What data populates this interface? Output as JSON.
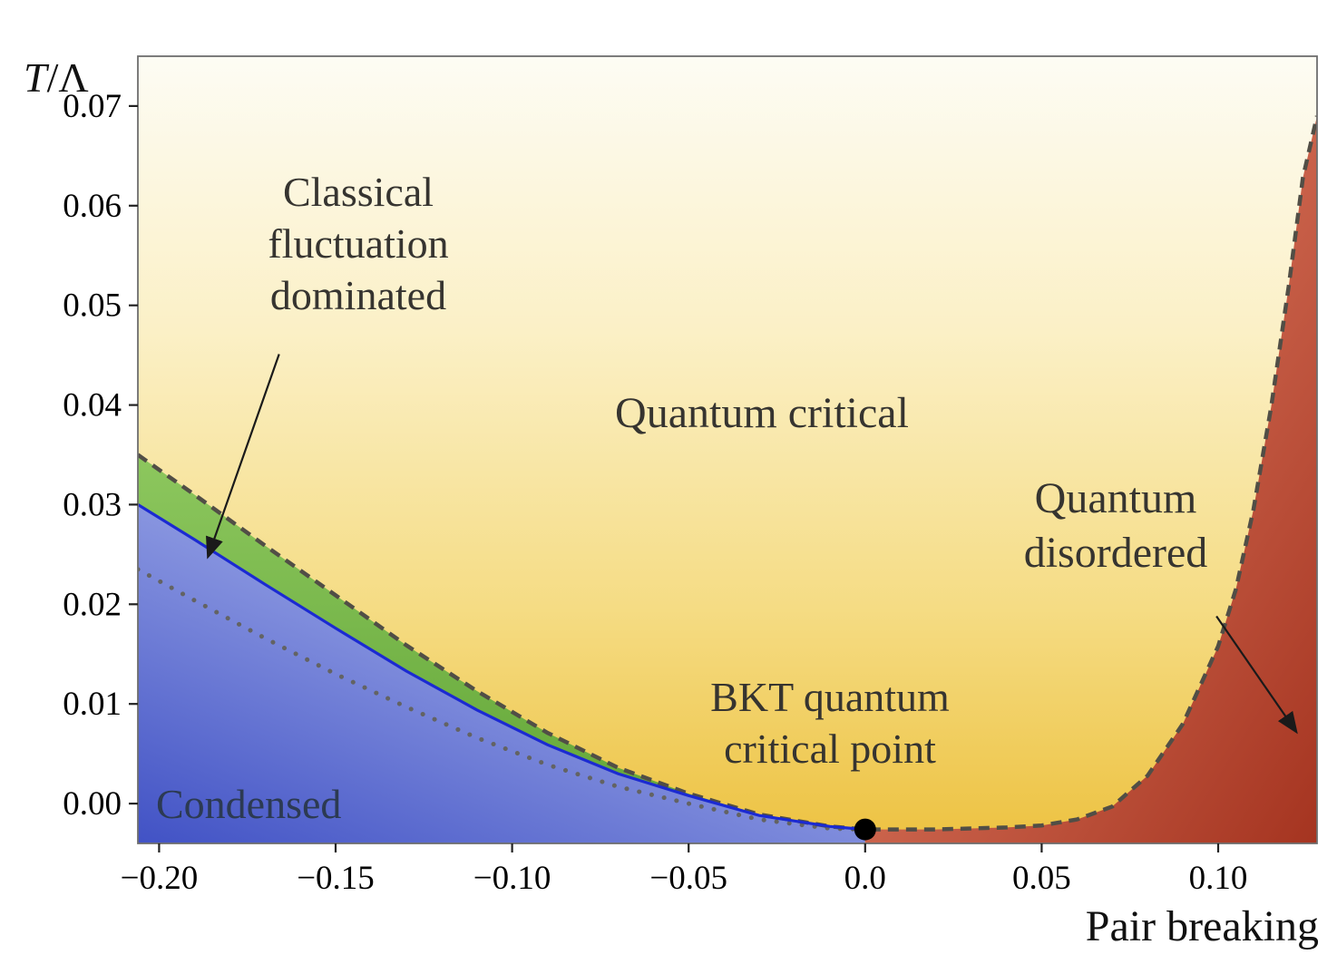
{
  "y_axis_title": {
    "italic": "T",
    "rest": "/Λ"
  },
  "x_axis_title": "Pair breaking",
  "regions": {
    "condensed": "Condensed",
    "quantum_critical": "Quantum critical",
    "classical_fluctuation": "Classical\nfluctuation\ndominated",
    "quantum_disordered": "Quantum\ndisordered",
    "bkt_point": "BKT quantum\ncritical point"
  },
  "colors": {
    "background_gradient": [
      "#fdfcf4",
      "#fbf0c6",
      "#f5dc84",
      "#edc241"
    ],
    "condensed_gradient": [
      "#4152c5",
      "#bcc6f3"
    ],
    "classical_gradient": [
      "#8dc75e",
      "#61a536"
    ],
    "disordered_gradient": [
      "#f09277",
      "#a53420"
    ],
    "blue_line": "#1b2ad2",
    "dashed_line": "#514e46",
    "dotted_line": "#636363",
    "dot": "#000000",
    "frame": "#6e6e6e",
    "tick": "#222222",
    "arrow": "#1a1a1a",
    "tick_label": "#000000"
  },
  "chart_data": {
    "type": "area",
    "title": "",
    "xlabel": "Pair breaking",
    "ylabel": "T/Λ",
    "xlim": [
      -0.206,
      0.128
    ],
    "ylim": [
      -0.004,
      0.075
    ],
    "grid": false,
    "x_ticks": [
      {
        "v": -0.2,
        "label": "−0.20"
      },
      {
        "v": -0.15,
        "label": "−0.15"
      },
      {
        "v": -0.1,
        "label": "−0.10"
      },
      {
        "v": -0.05,
        "label": "−0.05"
      },
      {
        "v": 0.0,
        "label": "0.0"
      },
      {
        "v": 0.05,
        "label": "0.05"
      },
      {
        "v": 0.1,
        "label": "0.10"
      }
    ],
    "y_ticks": [
      {
        "v": 0.0,
        "label": "0.00"
      },
      {
        "v": 0.01,
        "label": "0.01"
      },
      {
        "v": 0.02,
        "label": "0.02"
      },
      {
        "v": 0.03,
        "label": "0.03"
      },
      {
        "v": 0.04,
        "label": "0.04"
      },
      {
        "v": 0.05,
        "label": "0.05"
      },
      {
        "v": 0.06,
        "label": "0.06"
      },
      {
        "v": 0.07,
        "label": "0.07"
      }
    ],
    "series": [
      {
        "name": "bkt_transition_blue_line",
        "style": "solid-blue",
        "x": [
          -0.206,
          -0.19,
          -0.17,
          -0.15,
          -0.13,
          -0.11,
          -0.09,
          -0.07,
          -0.05,
          -0.03,
          -0.01,
          0.0
        ],
        "y": [
          0.03,
          0.0265,
          0.022,
          0.0176,
          0.0133,
          0.0094,
          0.0059,
          0.003,
          0.0008,
          -0.0012,
          -0.0023,
          -0.0026
        ]
      },
      {
        "name": "classical_fluctuation_upper_boundary",
        "style": "dashed-dark",
        "x": [
          -0.206,
          -0.19,
          -0.17,
          -0.15,
          -0.13,
          -0.11,
          -0.09,
          -0.07,
          -0.05,
          -0.03,
          -0.01,
          0.0
        ],
        "y": [
          0.035,
          0.031,
          0.0259,
          0.0209,
          0.0159,
          0.0113,
          0.0071,
          0.0036,
          0.001,
          -0.0011,
          -0.0023,
          -0.0026
        ]
      },
      {
        "name": "gray_dotted_crossover",
        "style": "dotted-gray",
        "x": [
          -0.206,
          -0.19,
          -0.17,
          -0.15,
          -0.13,
          -0.11,
          -0.09,
          -0.07,
          -0.05,
          -0.03,
          -0.01,
          0.0
        ],
        "y": [
          0.0235,
          0.0204,
          0.0166,
          0.013,
          0.0097,
          0.0066,
          0.0039,
          0.0017,
          0.0,
          -0.0016,
          -0.0025,
          -0.0026
        ]
      },
      {
        "name": "quantum_disordered_boundary",
        "style": "dashed-dark",
        "x": [
          0.0,
          0.01,
          0.02,
          0.03,
          0.04,
          0.05,
          0.06,
          0.07,
          0.08,
          0.09,
          0.1,
          0.105,
          0.11,
          0.115,
          0.12,
          0.124,
          0.128
        ],
        "y": [
          -0.0026,
          -0.0026,
          -0.0026,
          -0.0025,
          -0.0024,
          -0.0022,
          -0.0016,
          -0.0003,
          0.0028,
          0.008,
          0.0158,
          0.0215,
          0.0295,
          0.0398,
          0.052,
          0.0628,
          0.069
        ]
      }
    ],
    "bkt_point": {
      "x": 0.0,
      "y": -0.0026,
      "radius_px": 12
    },
    "annotations": {
      "classical_arrow": {
        "x1": -0.166,
        "y1": 0.0451,
        "x2": -0.186,
        "y2": 0.0249
      },
      "disordered_arrow": {
        "x1": 0.0995,
        "y1": 0.0188,
        "x2": 0.1219,
        "y2": 0.0073
      }
    }
  }
}
